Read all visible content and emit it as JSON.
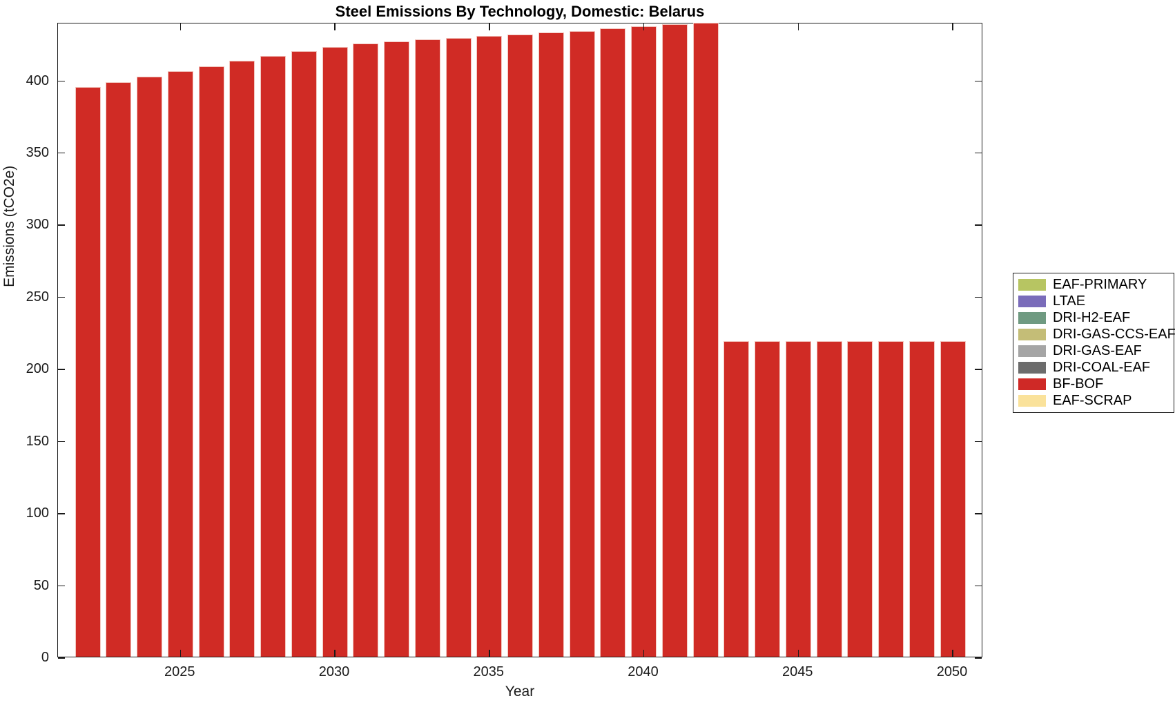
{
  "figure": {
    "title": "Steel Emissions By Technology, Domestic: Belarus",
    "xlabel": "Year",
    "ylabel": "Emissions (tCO2e)"
  },
  "colors": {
    "bar_fill": "#d02b25",
    "bar_edge": "#f2c7c0",
    "axis": "#1a1a1a",
    "background": "#ffffff"
  },
  "chart_data": {
    "type": "bar",
    "stacked": true,
    "title": "Steel Emissions By Technology, Domestic: Belarus",
    "xlabel": "Year",
    "ylabel": "Emissions (tCO2e)",
    "grid": false,
    "legend_position": "right-outside",
    "ylim": [
      0,
      440
    ],
    "yticks": [
      0,
      50,
      100,
      150,
      200,
      250,
      300,
      350,
      400
    ],
    "xticks": [
      2025,
      2030,
      2035,
      2040,
      2045,
      2050
    ],
    "x": [
      2022,
      2023,
      2024,
      2025,
      2026,
      2027,
      2028,
      2029,
      2030,
      2031,
      2032,
      2033,
      2034,
      2035,
      2036,
      2037,
      2038,
      2039,
      2040,
      2041,
      2042,
      2043,
      2044,
      2045,
      2046,
      2047,
      2048,
      2049,
      2050
    ],
    "series": [
      {
        "name": "BF-BOF",
        "color": "#d02b25",
        "values": [
          395,
          398.5,
          402,
          406,
          409.5,
          413,
          416.5,
          420,
          423,
          425,
          426.5,
          428,
          429,
          430.5,
          431.5,
          433,
          434,
          435.5,
          437,
          438.5,
          439.5,
          219,
          219,
          219,
          219,
          219,
          219,
          219,
          219
        ]
      }
    ],
    "legend": [
      {
        "label": "EAF-PRIMARY",
        "color": "#b7c562"
      },
      {
        "label": "LTAE",
        "color": "#7a6cba"
      },
      {
        "label": "DRI-H2-EAF",
        "color": "#6f9a81"
      },
      {
        "label": "DRI-GAS-CCS-EAF",
        "color": "#c4bd77"
      },
      {
        "label": "DRI-GAS-EAF",
        "color": "#a5a5a5"
      },
      {
        "label": "DRI-COAL-EAF",
        "color": "#6c6c6c"
      },
      {
        "label": "BF-BOF",
        "color": "#cf2926"
      },
      {
        "label": "EAF-SCRAP",
        "color": "#fae29b"
      }
    ]
  }
}
